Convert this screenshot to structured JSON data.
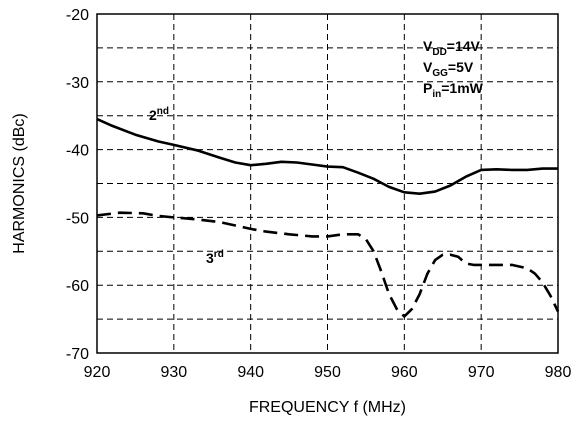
{
  "chart_data": {
    "type": "line",
    "title": "",
    "xlabel": "FREQUENCY f (MHz)",
    "ylabel": "HARMONICS (dBc)",
    "xlim": [
      920,
      980
    ],
    "ylim": [
      -70,
      -20
    ],
    "xticks": [
      920,
      930,
      940,
      950,
      960,
      970,
      980
    ],
    "yticks": [
      -20,
      -30,
      -40,
      -50,
      -60,
      -70
    ],
    "grid": true,
    "minor_grid_y": [
      -25,
      -35,
      -45,
      -55,
      -65
    ],
    "conditions": {
      "vdd": {
        "base": "V",
        "sub": "DD",
        "rest": "=14V"
      },
      "vgg": {
        "base": "V",
        "sub": "GG",
        "rest": "=5V"
      },
      "pin": {
        "base": "P",
        "sub": "in",
        "rest": "=1mW"
      }
    },
    "series": [
      {
        "name": "2nd",
        "label": {
          "base": "2",
          "sup": "nd"
        },
        "style": "solid",
        "x": [
          920,
          922,
          925,
          928,
          930,
          933,
          936,
          938,
          940,
          942,
          944,
          946,
          948,
          950,
          952,
          954,
          956,
          958,
          960,
          962,
          964,
          966,
          968,
          970,
          972,
          974,
          976,
          978,
          980
        ],
        "y": [
          -35.5,
          -36.5,
          -37.8,
          -38.8,
          -39.3,
          -40.1,
          -41.2,
          -41.9,
          -42.3,
          -42.1,
          -41.8,
          -41.9,
          -42.2,
          -42.5,
          -42.6,
          -43.4,
          -44.3,
          -45.5,
          -46.3,
          -46.5,
          -46.2,
          -45.3,
          -44.0,
          -43.0,
          -42.9,
          -43.0,
          -43.0,
          -42.8,
          -42.8
        ]
      },
      {
        "name": "3rd",
        "label": {
          "base": "3",
          "sup": "rd"
        },
        "style": "dashed",
        "x": [
          920,
          923,
          926,
          928,
          930,
          933,
          936,
          938,
          940,
          942,
          945,
          948,
          950,
          952,
          954,
          955,
          956,
          957,
          958,
          959,
          960,
          961,
          962,
          963,
          964,
          965,
          966,
          967,
          968,
          969,
          970,
          972,
          974,
          976,
          977,
          978,
          979,
          980
        ],
        "y": [
          -49.7,
          -49.3,
          -49.4,
          -49.8,
          -50.0,
          -50.3,
          -50.7,
          -51.2,
          -51.7,
          -52.1,
          -52.5,
          -52.8,
          -52.8,
          -52.5,
          -52.5,
          -53.2,
          -55.0,
          -58.0,
          -61.3,
          -63.5,
          -64.6,
          -63.5,
          -61.3,
          -58.3,
          -56.3,
          -55.5,
          -55.5,
          -55.8,
          -56.8,
          -57.0,
          -57.0,
          -57.0,
          -57.0,
          -57.5,
          -58.3,
          -59.6,
          -61.5,
          -63.9
        ]
      }
    ]
  }
}
